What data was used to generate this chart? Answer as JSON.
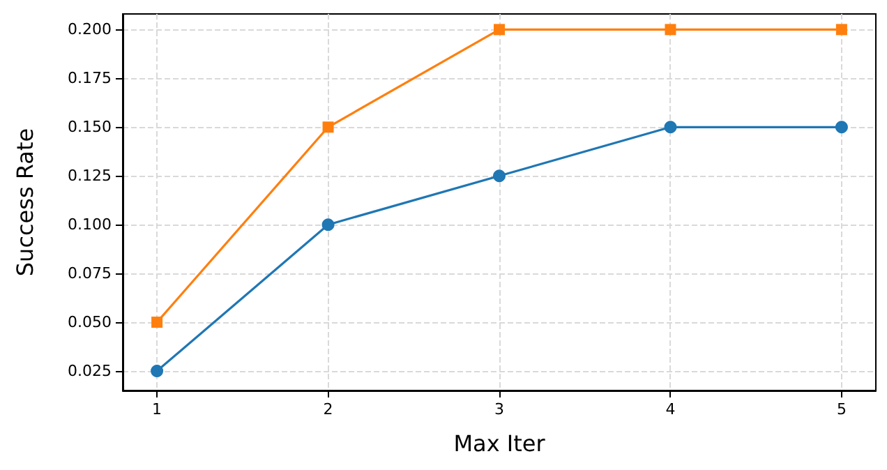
{
  "chart_data": {
    "type": "line",
    "xlabel": "Max Iter",
    "ylabel": "Success Rate",
    "x": [
      1,
      2,
      3,
      4,
      5
    ],
    "series": [
      {
        "color": "#1f77b4",
        "marker": "circle",
        "values": [
          0.025,
          0.1,
          0.125,
          0.15,
          0.15
        ]
      },
      {
        "color": "#ff7f0e",
        "marker": "square",
        "values": [
          0.05,
          0.15,
          0.2,
          0.2,
          0.2
        ]
      }
    ],
    "xlim": [
      0.8,
      5.2
    ],
    "xticks": [
      1,
      2,
      3,
      4,
      5
    ],
    "ylim": [
      0.015,
      0.208
    ],
    "yticks": [
      {
        "value": 0.025,
        "label": "0.025"
      },
      {
        "value": 0.05,
        "label": "0.050"
      },
      {
        "value": 0.075,
        "label": "0.075"
      },
      {
        "value": 0.1,
        "label": "0.100"
      },
      {
        "value": 0.125,
        "label": "0.125"
      },
      {
        "value": 0.15,
        "label": "0.150"
      },
      {
        "value": 0.175,
        "label": "0.175"
      },
      {
        "value": 0.2,
        "label": "0.200"
      }
    ],
    "grid": true,
    "line_style": "solid"
  }
}
